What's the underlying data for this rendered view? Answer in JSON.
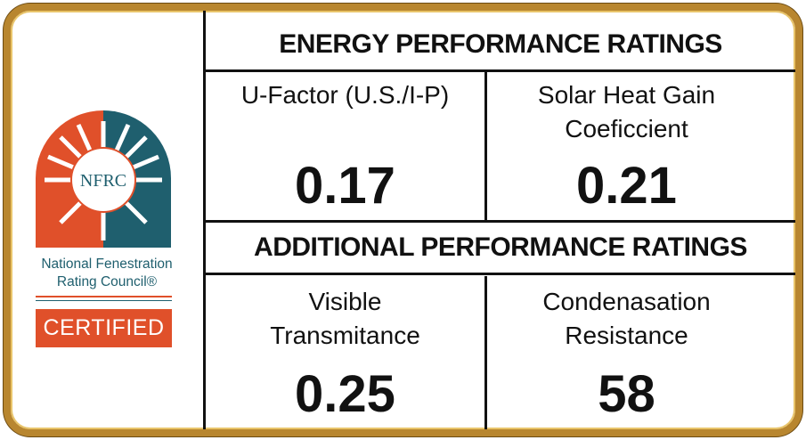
{
  "logo": {
    "mark": "NFRC",
    "name_lines": [
      "National Fenestration",
      "Rating Council®"
    ],
    "badge": "CERTIFIED"
  },
  "sections": [
    {
      "title": "ENERGY PERFORMANCE RATINGS",
      "cells": [
        {
          "label_lines": [
            "U-Factor (U.S./I-P)"
          ],
          "value": 0.17
        },
        {
          "label_lines": [
            "Solar Heat Gain",
            "Coeficcient"
          ],
          "value": 0.21
        }
      ]
    },
    {
      "title": "ADDITIONAL PERFORMANCE RATINGS",
      "cells": [
        {
          "label_lines": [
            "Visible",
            "Transmitance"
          ],
          "value": 0.25
        },
        {
          "label_lines": [
            "Condenasation",
            "Resistance"
          ],
          "value": 58
        }
      ]
    }
  ]
}
